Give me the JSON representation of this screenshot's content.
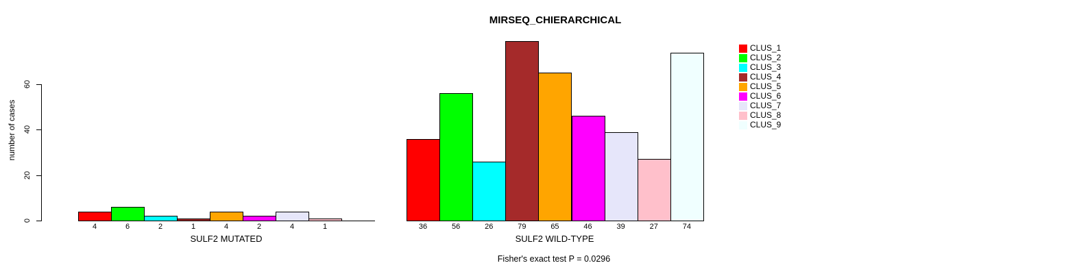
{
  "chart_data": {
    "type": "bar",
    "title": "MIRSEQ_CHIERARCHICAL",
    "ylabel": "number of cases",
    "yticks": [
      0,
      20,
      40,
      60
    ],
    "ylim": [
      0,
      79
    ],
    "grid": false,
    "legend_position": "right",
    "legend": [
      "CLUS_1",
      "CLUS_2",
      "CLUS_3",
      "CLUS_4",
      "CLUS_5",
      "CLUS_6",
      "CLUS_7",
      "CLUS_8",
      "CLUS_9"
    ],
    "colors": [
      "#FF0000",
      "#00FF00",
      "#00FFFF",
      "#A52A2A",
      "#FFA500",
      "#FF00FF",
      "#E6E6FA",
      "#FFC0CB",
      "#F0FFFF"
    ],
    "groups": [
      {
        "xlabel": "SULF2 MUTATED",
        "categories": [
          "CLUS_1",
          "CLUS_2",
          "CLUS_3",
          "CLUS_4",
          "CLUS_5",
          "CLUS_6",
          "CLUS_7",
          "CLUS_8",
          "CLUS_9"
        ],
        "values": [
          4,
          6,
          2,
          1,
          4,
          2,
          4,
          1,
          0
        ],
        "bar_labels": [
          "4",
          "6",
          "2",
          "1",
          "4",
          "2",
          "4",
          "1",
          ""
        ]
      },
      {
        "xlabel": "SULF2 WILD-TYPE",
        "categories": [
          "CLUS_1",
          "CLUS_2",
          "CLUS_3",
          "CLUS_4",
          "CLUS_5",
          "CLUS_6",
          "CLUS_7",
          "CLUS_8",
          "CLUS_9"
        ],
        "values": [
          36,
          56,
          26,
          79,
          65,
          46,
          39,
          27,
          74
        ],
        "bar_labels": [
          "36",
          "56",
          "26",
          "79",
          "65",
          "46",
          "39",
          "27",
          "74"
        ]
      }
    ],
    "annotation": "Fisher's exact test P = 0.0296",
    "axis_color": "#000000",
    "background_color": "#FFFFFF"
  }
}
